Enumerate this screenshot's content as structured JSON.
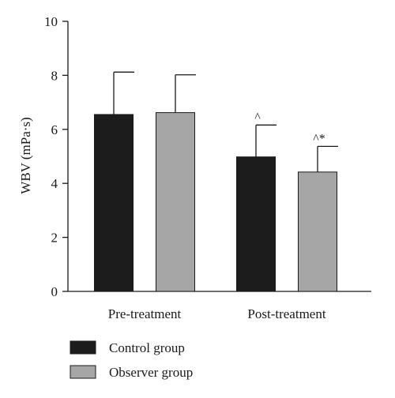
{
  "chart_data": {
    "type": "bar",
    "ylabel": "WBV (mPa·s)",
    "ylim": [
      0,
      10
    ],
    "yticks": [
      0,
      2,
      4,
      6,
      8,
      10
    ],
    "categories": [
      "Pre-treatment",
      "Post-treatment"
    ],
    "series": [
      {
        "name": "Control group",
        "color": "#1c1c1c",
        "values": [
          6.55,
          4.98
        ],
        "errors": [
          1.57,
          1.18
        ],
        "annotations": [
          "",
          "^"
        ]
      },
      {
        "name": "Observer group",
        "color": "#a6a6a6",
        "values": [
          6.62,
          4.42
        ],
        "errors": [
          1.4,
          0.95
        ],
        "annotations": [
          "",
          "^*"
        ]
      }
    ],
    "legend_position": "bottom-left",
    "grid": false
  }
}
